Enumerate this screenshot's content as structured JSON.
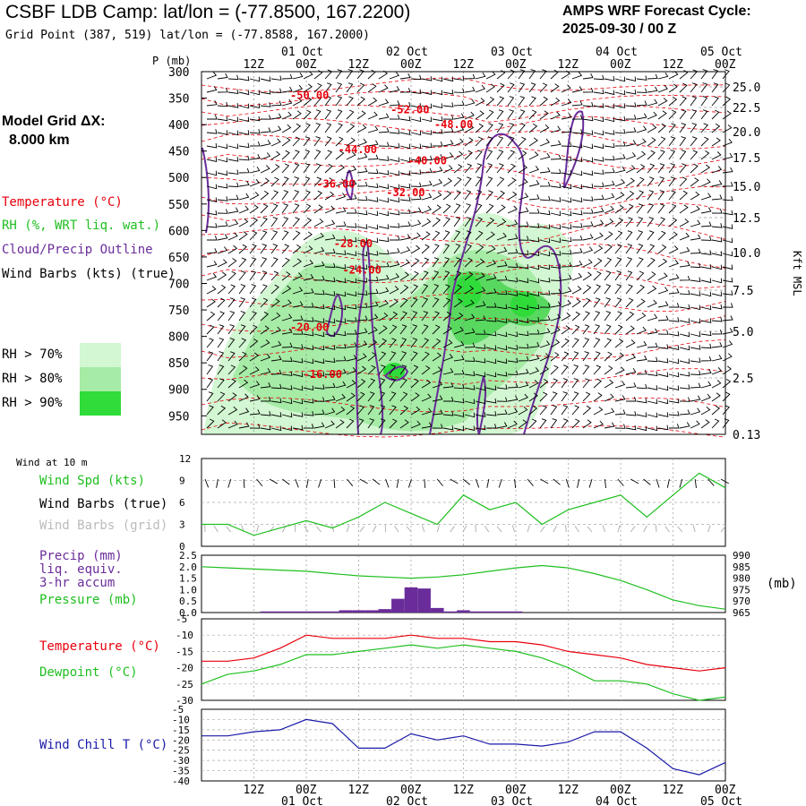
{
  "header": {
    "title": "CSBF LDB Camp:  lat/lon = (-77.8500, 167.2200)",
    "grid_point": "Grid Point (387, 519) lat/lon = (-77.8588, 167.2000)",
    "cycle_line1": "AMPS WRF Forecast Cycle:",
    "cycle_line2": "2025-09-30 / 00  Z"
  },
  "legend": {
    "model_grid_label": "Model Grid ΔX:",
    "model_grid_value": "8.000 km",
    "temperature": "Temperature (°C)",
    "rh": "RH (%, WRT liq. wat.)",
    "cloud": "Cloud/Precip Outline",
    "wind": "Wind Barbs (kts) (true)",
    "rh70": "RH > 70%",
    "rh80": "RH > 80%",
    "rh90": "RH > 90%",
    "colors": {
      "temperature": "#e8000b",
      "rh_text": "#1fbf1f",
      "cloud": "#6a2c9a",
      "rh70": "#d2f7d2",
      "rh80": "#a6eba6",
      "rh90": "#2fdc3a"
    }
  },
  "time_axis": {
    "hour_labels": [
      "12Z",
      "00Z",
      "12Z",
      "00Z",
      "12Z",
      "00Z",
      "12Z",
      "00Z",
      "12Z",
      "00Z"
    ],
    "date_labels": [
      "01 Oct",
      "02 Oct",
      "03 Oct",
      "04 Oct",
      "05 Oct"
    ]
  },
  "chart_data": [
    {
      "type": "line",
      "name": "sounding",
      "ylabel_left": "P (mb)",
      "ylabel_right": "Kft MSL",
      "pressure_ticks": [
        300,
        350,
        400,
        450,
        500,
        550,
        600,
        650,
        700,
        750,
        800,
        850,
        900,
        950
      ],
      "height_ticks": [
        "25.0",
        "22.5",
        "20.0",
        "17.5",
        "15.0",
        "12.5",
        "10.0",
        "7.5",
        "5.0",
        "2.5",
        "0.13"
      ],
      "temperature_labels": [
        {
          "text": "-50.00",
          "hour": 24,
          "p": 345
        },
        {
          "text": "-52.00",
          "hour": 47,
          "p": 372
        },
        {
          "text": "-48.00",
          "hour": 57,
          "p": 400
        },
        {
          "text": "-44.00",
          "hour": 35,
          "p": 447
        },
        {
          "text": "-40.00",
          "hour": 51,
          "p": 468
        },
        {
          "text": "-36.00",
          "hour": 30,
          "p": 512
        },
        {
          "text": "-32.00",
          "hour": 46,
          "p": 528
        },
        {
          "text": "-28.00",
          "hour": 34,
          "p": 625
        },
        {
          "text": "-24.00",
          "hour": 36,
          "p": 675
        },
        {
          "text": "-20.00",
          "hour": 24,
          "p": 783
        },
        {
          "text": "-16.00",
          "hour": 27,
          "p": 872
        }
      ]
    },
    {
      "type": "line",
      "name": "wind10m",
      "panel_label": "Wind at 10 m",
      "series_labels": [
        "Wind Spd (kts)",
        "Wind Barbs (true)",
        "Wind Barbs (grid)"
      ],
      "y_ticks": [
        "12",
        "9",
        "6",
        "3",
        "0"
      ],
      "ylim": [
        0,
        12
      ],
      "x_hours": [
        0,
        6,
        12,
        18,
        24,
        30,
        36,
        42,
        48,
        54,
        60,
        66,
        72,
        78,
        84,
        90,
        96,
        102,
        108,
        114,
        120
      ],
      "wind_speed": [
        3,
        3,
        1.5,
        2.5,
        3.5,
        2.5,
        4,
        6,
        4.5,
        3,
        7,
        5,
        6,
        3,
        5,
        6,
        7,
        4,
        7,
        10,
        8
      ]
    },
    {
      "type": "bar",
      "name": "precip_pressure",
      "series_labels": [
        "Precip (mm)",
        "liq. equiv.",
        "3-hr accum",
        "Pressure (mb)"
      ],
      "left_ticks": [
        "2.5",
        "2.0",
        "1.5",
        "1.0",
        "0.5",
        "0.0"
      ],
      "right_ticks": [
        "990",
        "985",
        "980",
        "975",
        "970",
        "965"
      ],
      "right_label": "(mb)",
      "precip_hours": [
        15,
        18,
        21,
        24,
        27,
        30,
        33,
        36,
        39,
        42,
        45,
        48,
        51,
        54,
        57,
        60,
        63,
        66,
        69,
        72
      ],
      "precip_mm": [
        0.05,
        0.05,
        0.05,
        0.05,
        0.05,
        0.05,
        0.1,
        0.1,
        0.1,
        0.15,
        0.6,
        1.1,
        1.05,
        0.2,
        0.05,
        0.1,
        0.05,
        0.05,
        0.05,
        0.05
      ],
      "pressure_hours": [
        0,
        6,
        12,
        18,
        24,
        30,
        36,
        42,
        48,
        54,
        60,
        66,
        72,
        78,
        84,
        90,
        96,
        102,
        108,
        114,
        120
      ],
      "pressure_mb": [
        985,
        984.5,
        984,
        983.5,
        983,
        982,
        981,
        980.5,
        980,
        980.5,
        981.5,
        983,
        984.5,
        985.5,
        984.5,
        982,
        979,
        975,
        970.5,
        968,
        966.5
      ]
    },
    {
      "type": "line",
      "name": "temp_dewpoint",
      "series_labels": [
        "Temperature (°C)",
        "Dewpoint (°C)"
      ],
      "y_ticks": [
        "-5",
        "-10",
        "-15",
        "-20",
        "-25",
        "-30"
      ],
      "ylim": [
        -30,
        -5
      ],
      "x_hours": [
        0,
        6,
        12,
        18,
        24,
        30,
        36,
        42,
        48,
        54,
        60,
        66,
        72,
        78,
        84,
        90,
        96,
        102,
        108,
        114,
        120
      ],
      "temperature": [
        -18,
        -18,
        -17,
        -14,
        -10,
        -11,
        -11,
        -11,
        -10,
        -11,
        -11,
        -12,
        -12,
        -13,
        -15,
        -16,
        -17,
        -19,
        -20,
        -21,
        -20
      ],
      "dewpoint": [
        -25,
        -22,
        -21,
        -19,
        -16,
        -16,
        -15,
        -14,
        -13,
        -14,
        -13,
        -14,
        -15,
        -17,
        -20,
        -24,
        -24,
        -25,
        -28,
        -30,
        -29
      ]
    },
    {
      "type": "line",
      "name": "wind_chill",
      "series_labels": [
        "Wind Chill T (°C)"
      ],
      "y_ticks": [
        "-5",
        "-10",
        "-15",
        "-20",
        "-25",
        "-30",
        "-35",
        "-40"
      ],
      "ylim": [
        -40,
        -5
      ],
      "x_hours": [
        0,
        6,
        12,
        18,
        24,
        30,
        36,
        42,
        48,
        54,
        60,
        66,
        72,
        78,
        84,
        90,
        96,
        102,
        108,
        114,
        120
      ],
      "wind_chill": [
        -18,
        -18,
        -16,
        -15,
        -10,
        -12,
        -24,
        -24,
        -17,
        -20,
        -18,
        -22,
        -22,
        -23,
        -21,
        -16,
        -16,
        -24,
        -34,
        -37,
        -31
      ]
    }
  ]
}
